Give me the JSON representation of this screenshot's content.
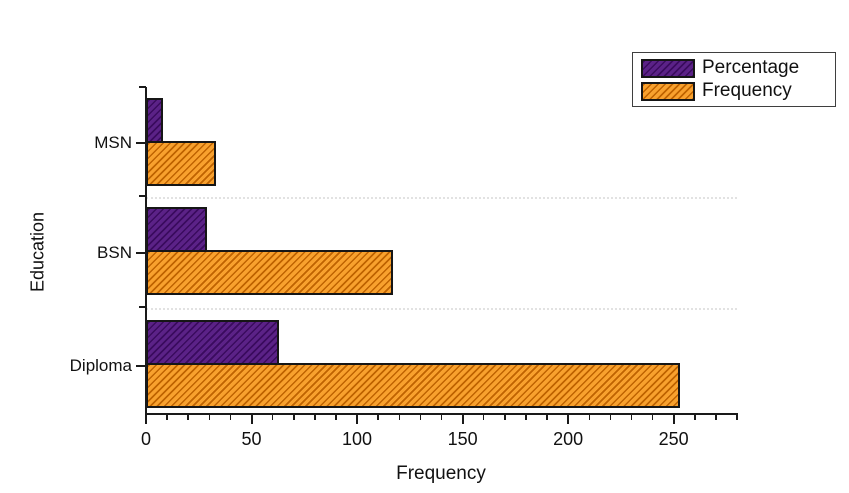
{
  "chart_data": {
    "type": "bar",
    "orientation": "horizontal",
    "title": "",
    "xlabel": "Frequency",
    "ylabel": "Education",
    "categories": [
      "MSN",
      "BSN",
      "Diploma"
    ],
    "series": [
      {
        "name": "Percentage",
        "values": [
          8,
          29,
          63
        ],
        "fill_color": "#5b2287",
        "hatch_color": "#3a0b5e"
      },
      {
        "name": "Frequency",
        "values": [
          33,
          117,
          253
        ],
        "fill_color": "#f8a12e",
        "hatch_color": "#bf6300"
      }
    ],
    "xlim": [
      0,
      280
    ],
    "x_major_ticks": [
      0,
      50,
      100,
      150,
      200,
      250
    ],
    "x_minor_tick_step": 10,
    "grid": "dotted horizontal separators between category groups",
    "legend_position": "top-right",
    "hatch_pattern": "diagonal-forward-slash",
    "bar_border_color": "#161616",
    "axis_color": "#1a1a1a",
    "background_color": "#ffffff"
  }
}
